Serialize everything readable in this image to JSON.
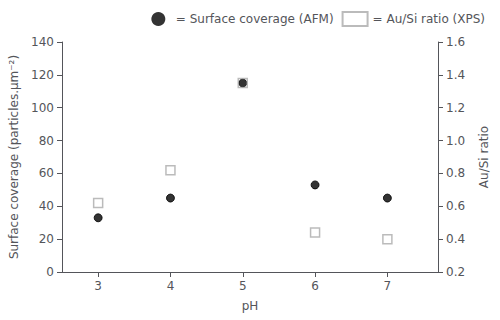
{
  "chart_data": {
    "type": "scatter",
    "x": [
      3,
      4,
      5,
      6,
      7
    ],
    "xlabel": "pH",
    "ylabel": "Surface coverage (particles.μm⁻²)",
    "y2label": "Au/Si ratio",
    "xlim": [
      2.5,
      7.7
    ],
    "xticks": [
      3,
      4,
      5,
      6,
      7
    ],
    "ylim": [
      0,
      140
    ],
    "yticks": [
      0,
      20,
      40,
      60,
      80,
      100,
      120,
      140
    ],
    "y2lim": [
      0.2,
      1.6
    ],
    "y2ticks": [
      0.2,
      0.4,
      0.6,
      0.8,
      {
        "value": 1.0,
        "label": "1.0"
      },
      1.2,
      1.4,
      1.6
    ],
    "series": [
      {
        "name": "= Surface coverage (AFM)",
        "color": "#000000",
        "marker": "filled_circle",
        "axis": "y",
        "values": [
          33,
          45,
          115,
          53,
          45
        ]
      },
      {
        "name": "= Au/Si ratio (XPS)",
        "color": "#aaaaaa",
        "marker": "open_square",
        "axis": "y2",
        "values": [
          0.62,
          0.82,
          1.35,
          0.44,
          0.4
        ]
      }
    ],
    "legend": "upper right",
    "grid": false
  }
}
